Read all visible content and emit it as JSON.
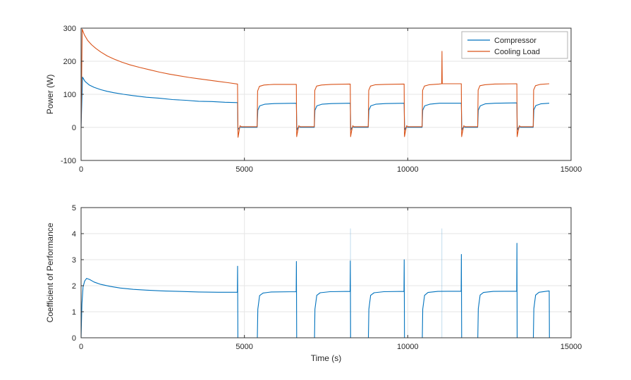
{
  "figure": {
    "background": "#ffffff",
    "axis_color": "#333333",
    "grid_color": "#e6e6e6",
    "tick_label_color": "#262626"
  },
  "chart_data": [
    {
      "type": "line",
      "name": "power-plot",
      "title": "",
      "xlabel": "",
      "ylabel": "Power (W)",
      "xlim": [
        0,
        15000
      ],
      "ylim": [
        -100,
        300
      ],
      "xticks": [
        0,
        5000,
        10000,
        15000
      ],
      "yticks": [
        -100,
        0,
        100,
        200,
        300
      ],
      "grid": true,
      "legend": {
        "position": "top-right",
        "entries": [
          "Compressor",
          "Cooling Load"
        ]
      },
      "series": [
        {
          "name": "Compressor",
          "color": "#0072BD",
          "points": [
            [
              0,
              0
            ],
            [
              45,
              152
            ],
            [
              120,
              139
            ],
            [
              250,
              128
            ],
            [
              400,
              121
            ],
            [
              600,
              114
            ],
            [
              800,
              109
            ],
            [
              1000,
              105
            ],
            [
              1300,
              100
            ],
            [
              1600,
              96
            ],
            [
              2000,
              91
            ],
            [
              2400,
              88
            ],
            [
              2800,
              84
            ],
            [
              3200,
              82
            ],
            [
              3600,
              79
            ],
            [
              4000,
              78
            ],
            [
              4400,
              76
            ],
            [
              4790,
              75
            ],
            [
              4800,
              -8
            ],
            [
              4835,
              -2
            ],
            [
              4880,
              0
            ],
            [
              5390,
              0
            ],
            [
              5410,
              52
            ],
            [
              5470,
              65
            ],
            [
              5620,
              70
            ],
            [
              5920,
              72
            ],
            [
              6590,
              73
            ],
            [
              6605,
              -8
            ],
            [
              6645,
              0
            ],
            [
              7140,
              0
            ],
            [
              7160,
              52
            ],
            [
              7220,
              65
            ],
            [
              7370,
              70
            ],
            [
              7670,
              72
            ],
            [
              8240,
              73
            ],
            [
              8255,
              -8
            ],
            [
              8295,
              0
            ],
            [
              8790,
              0
            ],
            [
              8810,
              52
            ],
            [
              8870,
              65
            ],
            [
              9020,
              70
            ],
            [
              9320,
              72
            ],
            [
              9890,
              73
            ],
            [
              9905,
              -8
            ],
            [
              9945,
              0
            ],
            [
              10440,
              0
            ],
            [
              10460,
              52
            ],
            [
              10520,
              65
            ],
            [
              10670,
              70
            ],
            [
              10970,
              73
            ],
            [
              11640,
              73
            ],
            [
              11655,
              -8
            ],
            [
              11695,
              0
            ],
            [
              12140,
              0
            ],
            [
              12160,
              52
            ],
            [
              12220,
              65
            ],
            [
              12370,
              71
            ],
            [
              12670,
              73
            ],
            [
              13340,
              74
            ],
            [
              13355,
              -8
            ],
            [
              13395,
              0
            ],
            [
              13840,
              0
            ],
            [
              13860,
              53
            ],
            [
              13920,
              66
            ],
            [
              14070,
              71
            ],
            [
              14330,
              73
            ]
          ]
        },
        {
          "name": "Cooling Load",
          "color": "#D95319",
          "points": [
            [
              0,
              0
            ],
            [
              35,
              297
            ],
            [
              100,
              280
            ],
            [
              200,
              263
            ],
            [
              320,
              250
            ],
            [
              450,
              239
            ],
            [
              600,
              228
            ],
            [
              800,
              216
            ],
            [
              1000,
              207
            ],
            [
              1250,
              197
            ],
            [
              1500,
              189
            ],
            [
              1800,
              181
            ],
            [
              2100,
              174
            ],
            [
              2400,
              167
            ],
            [
              2700,
              161
            ],
            [
              3000,
              156
            ],
            [
              3300,
              151
            ],
            [
              3600,
              147
            ],
            [
              3900,
              143
            ],
            [
              4200,
              139
            ],
            [
              4500,
              135
            ],
            [
              4790,
              131
            ],
            [
              4805,
              -30
            ],
            [
              4835,
              -13
            ],
            [
              4865,
              5
            ],
            [
              4910,
              2
            ],
            [
              5390,
              2
            ],
            [
              5405,
              110
            ],
            [
              5460,
              124
            ],
            [
              5600,
              128
            ],
            [
              5900,
              130
            ],
            [
              6590,
              130
            ],
            [
              6600,
              -28
            ],
            [
              6630,
              -12
            ],
            [
              6665,
              5
            ],
            [
              6710,
              2
            ],
            [
              7140,
              2
            ],
            [
              7155,
              112
            ],
            [
              7210,
              125
            ],
            [
              7360,
              128
            ],
            [
              7660,
              130
            ],
            [
              8240,
              131
            ],
            [
              8250,
              -28
            ],
            [
              8280,
              -12
            ],
            [
              8315,
              5
            ],
            [
              8360,
              2
            ],
            [
              8790,
              2
            ],
            [
              8805,
              112
            ],
            [
              8860,
              125
            ],
            [
              9010,
              129
            ],
            [
              9310,
              130
            ],
            [
              9890,
              131
            ],
            [
              9900,
              -28
            ],
            [
              9930,
              -12
            ],
            [
              9965,
              5
            ],
            [
              10010,
              2
            ],
            [
              10440,
              2
            ],
            [
              10455,
              112
            ],
            [
              10510,
              125
            ],
            [
              10660,
              129
            ],
            [
              10960,
              131
            ],
            [
              11040,
              132
            ],
            [
              11048,
              230
            ],
            [
              11056,
              132
            ],
            [
              11640,
              132
            ],
            [
              11650,
              -28
            ],
            [
              11680,
              -12
            ],
            [
              11715,
              5
            ],
            [
              11760,
              2
            ],
            [
              12140,
              2
            ],
            [
              12155,
              113
            ],
            [
              12210,
              126
            ],
            [
              12360,
              129
            ],
            [
              12660,
              131
            ],
            [
              13340,
              132
            ],
            [
              13350,
              -28
            ],
            [
              13380,
              -12
            ],
            [
              13415,
              5
            ],
            [
              13460,
              2
            ],
            [
              13840,
              2
            ],
            [
              13855,
              113
            ],
            [
              13910,
              126
            ],
            [
              14060,
              130
            ],
            [
              14330,
              132
            ]
          ]
        }
      ]
    },
    {
      "type": "line",
      "name": "cop-plot",
      "title": "",
      "xlabel": "Time (s)",
      "ylabel": "Coefficient of Performance",
      "xlim": [
        0,
        15000
      ],
      "ylim": [
        0,
        5
      ],
      "xticks": [
        0,
        5000,
        10000,
        15000
      ],
      "yticks": [
        0,
        1,
        2,
        3,
        4,
        5
      ],
      "grid": true,
      "legend": null,
      "faint_spikes": [
        {
          "x": 8246,
          "top": 4.2
        },
        {
          "x": 11046,
          "top": 4.2
        }
      ],
      "series": [
        {
          "name": "COP",
          "color": "#0072BD",
          "points": [
            [
              0,
              0
            ],
            [
              25,
              1.3
            ],
            [
              60,
              1.95
            ],
            [
              110,
              2.18
            ],
            [
              170,
              2.28
            ],
            [
              260,
              2.24
            ],
            [
              400,
              2.14
            ],
            [
              600,
              2.05
            ],
            [
              900,
              1.97
            ],
            [
              1200,
              1.91
            ],
            [
              1600,
              1.86
            ],
            [
              2000,
              1.83
            ],
            [
              2500,
              1.8
            ],
            [
              3000,
              1.78
            ],
            [
              3600,
              1.76
            ],
            [
              4200,
              1.75
            ],
            [
              4785,
              1.75
            ],
            [
              4792,
              2.75
            ],
            [
              4800,
              0
            ],
            [
              5395,
              0
            ],
            [
              5410,
              1.1
            ],
            [
              5465,
              1.62
            ],
            [
              5570,
              1.72
            ],
            [
              5820,
              1.76
            ],
            [
              6585,
              1.77
            ],
            [
              6592,
              2.93
            ],
            [
              6600,
              0
            ],
            [
              7145,
              0
            ],
            [
              7160,
              1.1
            ],
            [
              7215,
              1.63
            ],
            [
              7320,
              1.73
            ],
            [
              7620,
              1.77
            ],
            [
              8235,
              1.78
            ],
            [
              8242,
              2.95
            ],
            [
              8250,
              0
            ],
            [
              8795,
              0
            ],
            [
              8810,
              1.1
            ],
            [
              8865,
              1.63
            ],
            [
              8970,
              1.73
            ],
            [
              9270,
              1.77
            ],
            [
              9885,
              1.78
            ],
            [
              9892,
              3.0
            ],
            [
              9900,
              0
            ],
            [
              10445,
              0
            ],
            [
              10460,
              1.1
            ],
            [
              10515,
              1.63
            ],
            [
              10620,
              1.74
            ],
            [
              10920,
              1.78
            ],
            [
              11635,
              1.79
            ],
            [
              11642,
              3.2
            ],
            [
              11650,
              0
            ],
            [
              12145,
              0
            ],
            [
              12160,
              1.12
            ],
            [
              12215,
              1.64
            ],
            [
              12320,
              1.74
            ],
            [
              12620,
              1.78
            ],
            [
              13335,
              1.79
            ],
            [
              13342,
              3.63
            ],
            [
              13350,
              0
            ],
            [
              13845,
              0
            ],
            [
              13860,
              1.12
            ],
            [
              13915,
              1.64
            ],
            [
              14020,
              1.75
            ],
            [
              14320,
              1.8
            ],
            [
              14330,
              1.8
            ],
            [
              14338,
              0
            ]
          ]
        }
      ]
    }
  ]
}
